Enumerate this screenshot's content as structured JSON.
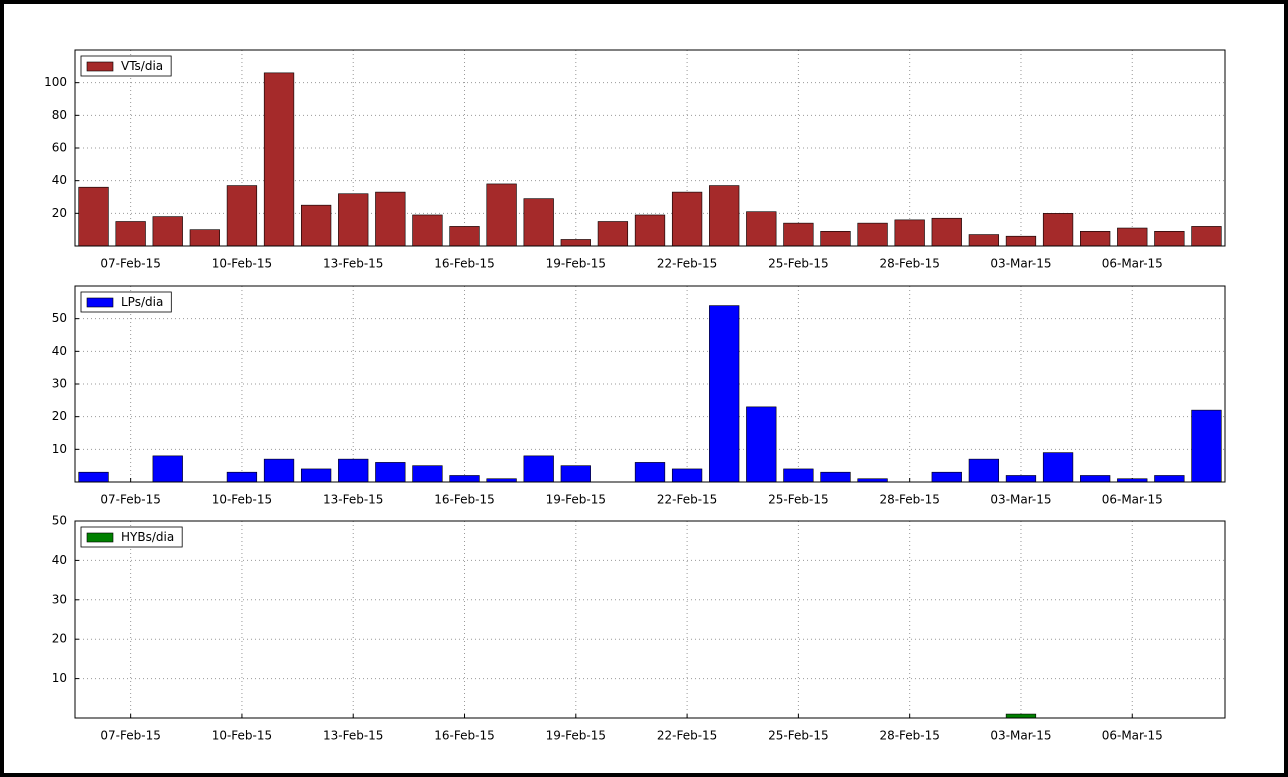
{
  "chart_data": [
    {
      "type": "bar",
      "categories": [
        null,
        "07-Feb-15",
        null,
        null,
        "10-Feb-15",
        null,
        null,
        "13-Feb-15",
        null,
        null,
        "16-Feb-15",
        null,
        null,
        "19-Feb-15",
        null,
        null,
        "22-Feb-15",
        null,
        null,
        "25-Feb-15",
        null,
        null,
        "28-Feb-15",
        null,
        null,
        "03-Mar-15",
        null,
        null,
        "06-Mar-15",
        null,
        null
      ],
      "series": [
        {
          "name": "VTs/dia",
          "color": "#a52a2a",
          "values": [
            36,
            15,
            18,
            10,
            37,
            106,
            25,
            32,
            33,
            19,
            12,
            38,
            29,
            4,
            15,
            19,
            33,
            37,
            21,
            14,
            9,
            14,
            16,
            17,
            7,
            6,
            20,
            9,
            11,
            9,
            12
          ]
        }
      ],
      "ylim": [
        0,
        120
      ],
      "yticks": [
        20,
        40,
        60,
        80,
        100
      ],
      "grid": true,
      "legend": "upper left"
    },
    {
      "type": "bar",
      "categories": [
        null,
        "07-Feb-15",
        null,
        null,
        "10-Feb-15",
        null,
        null,
        "13-Feb-15",
        null,
        null,
        "16-Feb-15",
        null,
        null,
        "19-Feb-15",
        null,
        null,
        "22-Feb-15",
        null,
        null,
        "25-Feb-15",
        null,
        null,
        "28-Feb-15",
        null,
        null,
        "03-Mar-15",
        null,
        null,
        "06-Mar-15",
        null,
        null
      ],
      "series": [
        {
          "name": "LPs/dia",
          "color": "#0000ff",
          "values": [
            3,
            0,
            8,
            0,
            3,
            7,
            4,
            7,
            6,
            5,
            2,
            1,
            8,
            5,
            0,
            6,
            4,
            54,
            23,
            4,
            3,
            1,
            0,
            3,
            7,
            2,
            9,
            2,
            1,
            2,
            22
          ]
        }
      ],
      "ylim": [
        0,
        60
      ],
      "yticks": [
        10,
        20,
        30,
        40,
        50
      ],
      "grid": true,
      "legend": "upper left"
    },
    {
      "type": "bar",
      "categories": [
        null,
        "07-Feb-15",
        null,
        null,
        "10-Feb-15",
        null,
        null,
        "13-Feb-15",
        null,
        null,
        "16-Feb-15",
        null,
        null,
        "19-Feb-15",
        null,
        null,
        "22-Feb-15",
        null,
        null,
        "25-Feb-15",
        null,
        null,
        "28-Feb-15",
        null,
        null,
        "03-Mar-15",
        null,
        null,
        "06-Mar-15",
        null,
        null
      ],
      "series": [
        {
          "name": "HYBs/dia",
          "color": "#008000",
          "values": [
            0,
            0,
            0,
            0,
            0,
            0,
            0,
            0,
            0,
            0,
            0,
            0,
            0,
            0,
            0,
            0,
            0,
            0,
            0,
            0,
            0,
            0,
            0,
            0,
            0,
            1,
            0,
            0,
            0,
            0,
            0
          ]
        }
      ],
      "ylim": [
        0,
        50
      ],
      "yticks": [
        10,
        20,
        30,
        40,
        50
      ],
      "grid": true,
      "legend": "upper left"
    }
  ]
}
